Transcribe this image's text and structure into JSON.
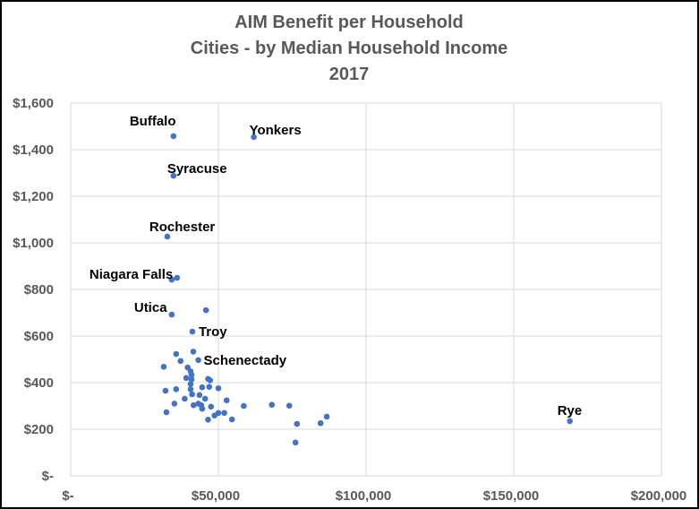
{
  "chart_data": {
    "type": "scatter",
    "title": [
      "AIM Benefit per Household",
      "Cities - by Median Household Income",
      "2017"
    ],
    "xlabel": "",
    "ylabel": "",
    "xlim": [
      0,
      200000
    ],
    "ylim": [
      0,
      1600
    ],
    "x_ticks": [
      0,
      50000,
      100000,
      150000,
      200000
    ],
    "x_tick_labels": [
      "$-",
      "$50,000",
      "$100,000",
      "$150,000",
      "$200,000"
    ],
    "y_ticks": [
      0,
      200,
      400,
      600,
      800,
      1000,
      1200,
      1400,
      1600
    ],
    "y_tick_labels": [
      "$-",
      "$200",
      "$400",
      "$600",
      "$800",
      "$1,000",
      "$1,200",
      "$1,400",
      "$1,600"
    ],
    "grid": true,
    "marker_color": "#4472C4",
    "points": [
      {
        "x": 34800,
        "y": 1458,
        "label": "Buffalo"
      },
      {
        "x": 62000,
        "y": 1454,
        "label": "Yonkers"
      },
      {
        "x": 34800,
        "y": 1288,
        "label": "Syracuse"
      },
      {
        "x": 32700,
        "y": 1027,
        "label": "Rochester"
      },
      {
        "x": 34200,
        "y": 842,
        "label": "Niagara Falls"
      },
      {
        "x": 36000,
        "y": 850
      },
      {
        "x": 34200,
        "y": 692,
        "label": "Utica"
      },
      {
        "x": 45800,
        "y": 711
      },
      {
        "x": 41200,
        "y": 619,
        "label": "Troy"
      },
      {
        "x": 43200,
        "y": 497,
        "label": "Schenectady"
      },
      {
        "x": 169000,
        "y": 235,
        "label": "Rye"
      },
      {
        "x": 35700,
        "y": 523
      },
      {
        "x": 41500,
        "y": 533
      },
      {
        "x": 37200,
        "y": 493
      },
      {
        "x": 31500,
        "y": 468
      },
      {
        "x": 39600,
        "y": 465
      },
      {
        "x": 40600,
        "y": 448
      },
      {
        "x": 40900,
        "y": 433
      },
      {
        "x": 39100,
        "y": 420
      },
      {
        "x": 40900,
        "y": 414
      },
      {
        "x": 46500,
        "y": 416
      },
      {
        "x": 47200,
        "y": 410
      },
      {
        "x": 40600,
        "y": 394
      },
      {
        "x": 32100,
        "y": 365
      },
      {
        "x": 35700,
        "y": 372
      },
      {
        "x": 44500,
        "y": 380
      },
      {
        "x": 46900,
        "y": 382
      },
      {
        "x": 50000,
        "y": 376
      },
      {
        "x": 40600,
        "y": 372
      },
      {
        "x": 41100,
        "y": 350
      },
      {
        "x": 43600,
        "y": 347
      },
      {
        "x": 38600,
        "y": 331
      },
      {
        "x": 45500,
        "y": 331
      },
      {
        "x": 52800,
        "y": 324
      },
      {
        "x": 35100,
        "y": 310
      },
      {
        "x": 41600,
        "y": 303
      },
      {
        "x": 43200,
        "y": 310
      },
      {
        "x": 44200,
        "y": 303
      },
      {
        "x": 44500,
        "y": 288
      },
      {
        "x": 47500,
        "y": 297
      },
      {
        "x": 58600,
        "y": 300
      },
      {
        "x": 68100,
        "y": 305
      },
      {
        "x": 74000,
        "y": 301
      },
      {
        "x": 32400,
        "y": 273
      },
      {
        "x": 46500,
        "y": 241
      },
      {
        "x": 48700,
        "y": 259
      },
      {
        "x": 50000,
        "y": 270
      },
      {
        "x": 52000,
        "y": 270
      },
      {
        "x": 54600,
        "y": 242
      },
      {
        "x": 76600,
        "y": 223
      },
      {
        "x": 84600,
        "y": 226
      },
      {
        "x": 86700,
        "y": 254
      },
      {
        "x": 76100,
        "y": 143
      }
    ]
  }
}
